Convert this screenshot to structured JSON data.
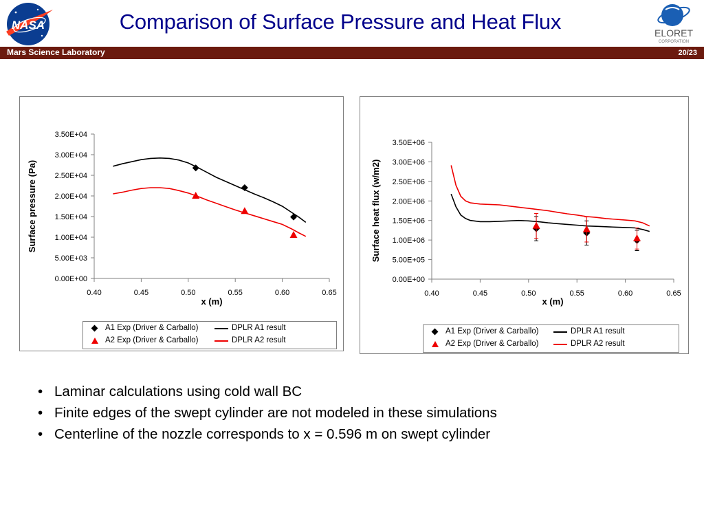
{
  "slide": {
    "title": "Comparison of Surface Pressure and Heat Flux",
    "header_left": "Mars Science Laboratory",
    "page_number": "20/23",
    "title_color": "#00008b",
    "bar_color": "#6b1a0e"
  },
  "logos": {
    "nasa": {
      "icon": "nasa-meatball-logo",
      "text": "NASA"
    },
    "eloret": {
      "icon": "eloret-globe-logo",
      "text": "ELORET",
      "subtext": "CORPORATION"
    }
  },
  "bullets": [
    "Laminar calculations using cold wall BC",
    "Finite edges of the swept cylinder are not modeled in these simulations",
    "Centerline of the nozzle corresponds to x = 0.596 m on swept cylinder"
  ],
  "chart_data": [
    {
      "type": "line",
      "title": "",
      "xlabel": "x (m)",
      "ylabel": "Surface pressure (Pa)",
      "xlim": [
        0.4,
        0.65
      ],
      "ylim": [
        0,
        35000
      ],
      "x_ticks": [
        "0.40",
        "0.45",
        "0.50",
        "0.55",
        "0.60",
        "0.65"
      ],
      "y_ticks": [
        "0.00E+00",
        "5.00E+03",
        "1.00E+04",
        "1.50E+04",
        "2.00E+04",
        "2.50E+04",
        "3.00E+04",
        "3.50E+04"
      ],
      "grid": false,
      "legend_position": "bottom",
      "series": [
        {
          "name": "A1 Exp (Driver & Carballo)",
          "kind": "marker",
          "marker": "diamond",
          "color": "#000000",
          "x": [
            0.508,
            0.56,
            0.612
          ],
          "y": [
            26800,
            22000,
            14900
          ]
        },
        {
          "name": "DPLR A1 result",
          "kind": "line",
          "color": "#000000",
          "x": [
            0.42,
            0.43,
            0.44,
            0.45,
            0.46,
            0.47,
            0.48,
            0.49,
            0.5,
            0.51,
            0.52,
            0.53,
            0.54,
            0.55,
            0.56,
            0.57,
            0.58,
            0.59,
            0.6,
            0.61,
            0.618,
            0.625
          ],
          "y": [
            27200,
            27800,
            28300,
            28800,
            29100,
            29200,
            29100,
            28700,
            28000,
            26900,
            25700,
            24500,
            23500,
            22500,
            21500,
            20500,
            19600,
            18600,
            17500,
            16000,
            14800,
            13600
          ]
        },
        {
          "name": "A2 Exp (Driver & Carballo)",
          "kind": "marker",
          "marker": "triangle",
          "color": "#ee0000",
          "x": [
            0.508,
            0.56,
            0.612
          ],
          "y": [
            20000,
            16300,
            10500
          ]
        },
        {
          "name": "DPLR A2 result",
          "kind": "line",
          "color": "#ee0000",
          "x": [
            0.42,
            0.43,
            0.44,
            0.45,
            0.46,
            0.47,
            0.48,
            0.49,
            0.5,
            0.51,
            0.52,
            0.53,
            0.54,
            0.55,
            0.56,
            0.57,
            0.58,
            0.59,
            0.6,
            0.61,
            0.618,
            0.625
          ],
          "y": [
            20500,
            20900,
            21400,
            21800,
            22000,
            22000,
            21800,
            21300,
            20700,
            19900,
            19000,
            18200,
            17400,
            16600,
            15900,
            15200,
            14500,
            13800,
            13100,
            12000,
            11000,
            10200
          ]
        }
      ]
    },
    {
      "type": "line",
      "title": "",
      "xlabel": "x (m)",
      "ylabel": "Surface heat flux (w/m2)",
      "xlim": [
        0.4,
        0.65
      ],
      "ylim": [
        0,
        3500000
      ],
      "x_ticks": [
        "0.40",
        "0.45",
        "0.50",
        "0.55",
        "0.60",
        "0.65"
      ],
      "y_ticks": [
        "0.00E+00",
        "5.00E+05",
        "1.00E+06",
        "1.50E+06",
        "2.00E+06",
        "2.50E+06",
        "3.00E+06",
        "3.50E+06"
      ],
      "grid": false,
      "legend_position": "bottom",
      "series": [
        {
          "name": "A1 Exp (Driver & Carballo)",
          "kind": "marker",
          "marker": "diamond",
          "color": "#000000",
          "x": [
            0.508,
            0.56,
            0.612
          ],
          "y": [
            1290000,
            1180000,
            990000
          ],
          "error": [
            310000,
            310000,
            260000
          ]
        },
        {
          "name": "DPLR A1 result",
          "kind": "line",
          "color": "#000000",
          "x": [
            0.42,
            0.425,
            0.43,
            0.435,
            0.44,
            0.45,
            0.46,
            0.47,
            0.48,
            0.49,
            0.5,
            0.51,
            0.52,
            0.53,
            0.54,
            0.55,
            0.56,
            0.57,
            0.58,
            0.59,
            0.6,
            0.61,
            0.618,
            0.625
          ],
          "y": [
            2180000,
            1850000,
            1640000,
            1550000,
            1500000,
            1470000,
            1470000,
            1480000,
            1490000,
            1500000,
            1490000,
            1470000,
            1440000,
            1420000,
            1400000,
            1380000,
            1360000,
            1350000,
            1340000,
            1330000,
            1320000,
            1310000,
            1270000,
            1220000
          ]
        },
        {
          "name": "A2 Exp (Driver & Carballo)",
          "kind": "marker",
          "marker": "triangle",
          "color": "#ee0000",
          "x": [
            0.508,
            0.56,
            0.612
          ],
          "y": [
            1360000,
            1270000,
            1040000
          ],
          "error": [
            320000,
            320000,
            270000
          ]
        },
        {
          "name": "DPLR A2 result",
          "kind": "line",
          "color": "#ee0000",
          "x": [
            0.42,
            0.425,
            0.43,
            0.435,
            0.44,
            0.45,
            0.46,
            0.47,
            0.48,
            0.49,
            0.5,
            0.51,
            0.52,
            0.53,
            0.54,
            0.55,
            0.56,
            0.57,
            0.58,
            0.59,
            0.6,
            0.61,
            0.618,
            0.625
          ],
          "y": [
            2910000,
            2400000,
            2120000,
            2000000,
            1950000,
            1920000,
            1910000,
            1900000,
            1870000,
            1840000,
            1810000,
            1780000,
            1750000,
            1710000,
            1670000,
            1640000,
            1600000,
            1580000,
            1550000,
            1530000,
            1510000,
            1490000,
            1440000,
            1360000
          ]
        }
      ]
    }
  ]
}
